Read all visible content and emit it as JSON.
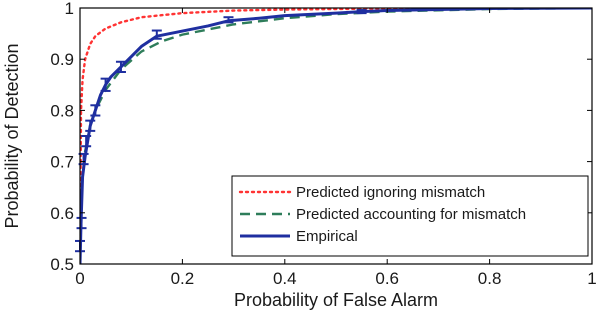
{
  "chart_data": {
    "type": "line",
    "xlabel": "Probability of False Alarm",
    "ylabel": "Probability of Detection",
    "xlim": [
      0,
      1
    ],
    "ylim": [
      0.5,
      1
    ],
    "xticks": [
      0,
      0.2,
      0.4,
      0.6,
      0.8,
      1
    ],
    "yticks": [
      0.5,
      0.6,
      0.7,
      0.8,
      0.9,
      1
    ],
    "xtick_labels": [
      "0",
      "0.2",
      "0.4",
      "0.6",
      "0.8",
      "1"
    ],
    "ytick_labels": [
      "0.5",
      "0.6",
      "0.7",
      "0.8",
      "0.9",
      "1"
    ],
    "grid": false,
    "legend_position": "bottom-right",
    "series": [
      {
        "name": "Predicted ignoring mismatch",
        "color": "#ff3333",
        "style": "dotted",
        "x": [
          0,
          0.002,
          0.005,
          0.01,
          0.02,
          0.03,
          0.05,
          0.08,
          0.12,
          0.2,
          0.3,
          0.4,
          0.6,
          0.8,
          1
        ],
        "y": [
          0.5,
          0.8,
          0.86,
          0.9,
          0.93,
          0.945,
          0.96,
          0.972,
          0.982,
          0.99,
          0.995,
          0.997,
          0.999,
          1,
          1
        ]
      },
      {
        "name": "Predicted accounting for mismatch",
        "color": "#2e7d5a",
        "style": "dashed",
        "x": [
          0,
          0.002,
          0.005,
          0.01,
          0.02,
          0.03,
          0.05,
          0.08,
          0.12,
          0.16,
          0.2,
          0.3,
          0.4,
          0.5,
          0.6,
          0.8,
          1
        ],
        "y": [
          0.5,
          0.6,
          0.67,
          0.72,
          0.77,
          0.8,
          0.84,
          0.88,
          0.915,
          0.935,
          0.948,
          0.968,
          0.98,
          0.988,
          0.993,
          0.998,
          1
        ]
      },
      {
        "name": "Empirical",
        "color": "#1f2fa0",
        "style": "solid",
        "x": [
          0,
          0.002,
          0.005,
          0.01,
          0.015,
          0.02,
          0.03,
          0.04,
          0.05,
          0.06,
          0.08,
          0.1,
          0.12,
          0.15,
          0.2,
          0.25,
          0.29,
          0.35,
          0.4,
          0.5,
          0.55,
          0.6,
          0.7,
          0.8,
          1
        ],
        "y": [
          0.5,
          0.58,
          0.67,
          0.71,
          0.74,
          0.77,
          0.8,
          0.83,
          0.85,
          0.865,
          0.885,
          0.905,
          0.925,
          0.945,
          0.955,
          0.965,
          0.975,
          0.98,
          0.985,
          0.99,
          0.993,
          0.995,
          0.997,
          0.999,
          1
        ]
      }
    ],
    "error_bars": {
      "series": "Empirical",
      "color": "#1f2fa0",
      "points": [
        {
          "x": 0,
          "y": 0.535,
          "err": 0.01
        },
        {
          "x": 0.003,
          "y": 0.58,
          "err": 0.01
        },
        {
          "x": 0.007,
          "y": 0.705,
          "err": 0.01
        },
        {
          "x": 0.012,
          "y": 0.74,
          "err": 0.01
        },
        {
          "x": 0.02,
          "y": 0.77,
          "err": 0.01
        },
        {
          "x": 0.03,
          "y": 0.8,
          "err": 0.01
        },
        {
          "x": 0.05,
          "y": 0.85,
          "err": 0.012
        },
        {
          "x": 0.08,
          "y": 0.885,
          "err": 0.01
        },
        {
          "x": 0.15,
          "y": 0.948,
          "err": 0.008
        },
        {
          "x": 0.29,
          "y": 0.977,
          "err": 0.005
        },
        {
          "x": 0.55,
          "y": 0.993,
          "err": 0.003
        }
      ]
    },
    "legend": [
      "Predicted ignoring mismatch",
      "Predicted accounting for mismatch",
      "Empirical"
    ]
  }
}
